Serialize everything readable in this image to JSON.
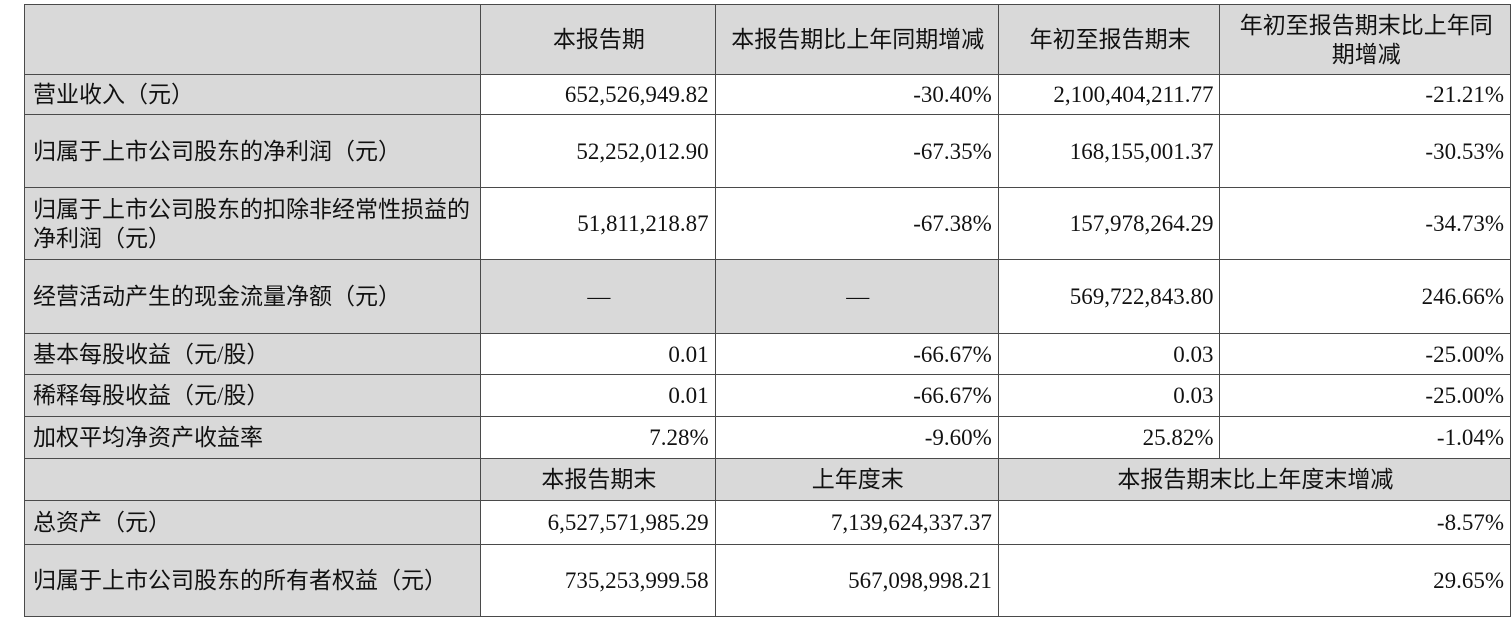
{
  "header": {
    "col1": "本报告期",
    "col2": "本报告期比上年同期增减",
    "col3": "年初至报告期末",
    "col4": "年初至报告期末比上年同期增减"
  },
  "rows": [
    {
      "label": "营业收入（元）",
      "v1": "652,526,949.82",
      "v2": "-30.40%",
      "v3": "2,100,404,211.77",
      "v4": "-21.21%"
    },
    {
      "label": "归属于上市公司股东的净利润（元）",
      "v1": "52,252,012.90",
      "v2": "-67.35%",
      "v3": "168,155,001.37",
      "v4": "-30.53%"
    },
    {
      "label": "归属于上市公司股东的扣除非经常性损益的净利润（元）",
      "v1": "51,811,218.87",
      "v2": "-67.38%",
      "v3": "157,978,264.29",
      "v4": "-34.73%"
    },
    {
      "label": "经营活动产生的现金流量净额（元）",
      "v1": "—",
      "v2": "—",
      "v3": "569,722,843.80",
      "v4": "246.66%"
    },
    {
      "label": "基本每股收益（元/股）",
      "v1": "0.01",
      "v2": "-66.67%",
      "v3": "0.03",
      "v4": "-25.00%"
    },
    {
      "label": "稀释每股收益（元/股）",
      "v1": "0.01",
      "v2": "-66.67%",
      "v3": "0.03",
      "v4": "-25.00%"
    },
    {
      "label": "加权平均净资产收益率",
      "v1": "7.28%",
      "v2": "-9.60%",
      "v3": "25.82%",
      "v4": "-1.04%"
    }
  ],
  "header2": {
    "col1": "本报告期末",
    "col2": "上年度末",
    "col3": "本报告期末比上年度末增减"
  },
  "rows2": [
    {
      "label": "总资产（元）",
      "v1": "6,527,571,985.29",
      "v2": "7,139,624,337.37",
      "v3": "-8.57%"
    },
    {
      "label": "归属于上市公司股东的所有者权益（元）",
      "v1": "735,253,999.58",
      "v2": "567,098,998.21",
      "v3": "29.65%"
    }
  ],
  "colors": {
    "header_bg": "#d9d9d9",
    "border": "#4a4a4a"
  }
}
